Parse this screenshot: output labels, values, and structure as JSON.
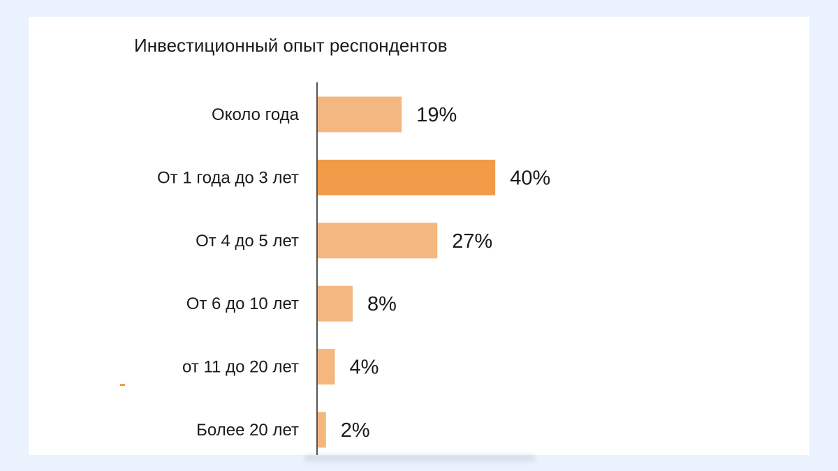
{
  "chart_data": {
    "type": "bar",
    "orientation": "horizontal",
    "title": "Инвестиционный опыт респондентов",
    "xlabel": "",
    "ylabel": "",
    "categories": [
      "Около года",
      "От 1 года до 3 лет",
      "От 4 до 5 лет",
      "От 6 до 10 лет",
      "от 11 до 20 лет",
      "Более 20 лет"
    ],
    "values": [
      19,
      40,
      27,
      8,
      4,
      2
    ],
    "value_labels": [
      "19%",
      "40%",
      "27%",
      "8%",
      "4%",
      "2%"
    ],
    "unit": "%",
    "xlim": [
      0,
      100
    ],
    "grid": false,
    "legend": "none",
    "highlight_index": 1,
    "colors": {
      "bar": "#f3b77f",
      "bar_highlight": "#f19b48",
      "axis": "#555555",
      "text": "#1a1a1a"
    }
  }
}
